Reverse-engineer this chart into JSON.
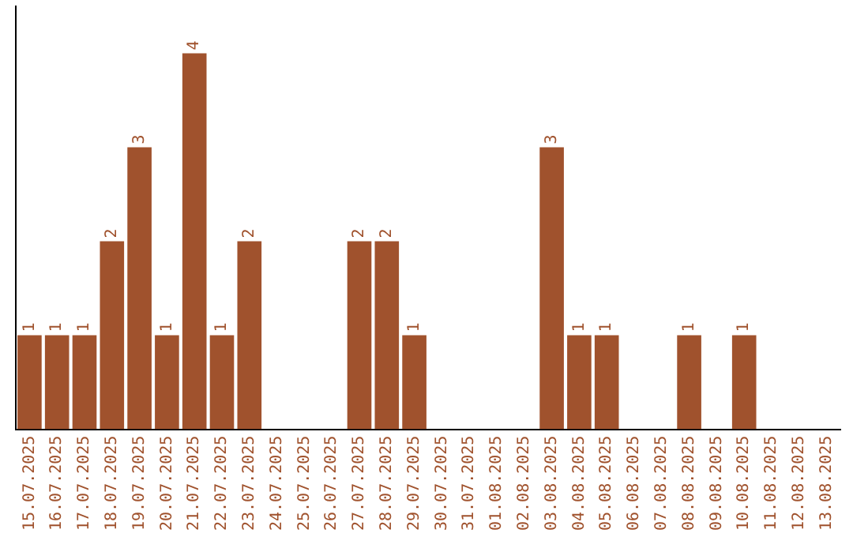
{
  "chart_data": {
    "type": "bar",
    "categories": [
      "15.07.2025",
      "16.07.2025",
      "17.07.2025",
      "18.07.2025",
      "19.07.2025",
      "20.07.2025",
      "21.07.2025",
      "22.07.2025",
      "23.07.2025",
      "24.07.2025",
      "25.07.2025",
      "26.07.2025",
      "27.07.2025",
      "28.07.2025",
      "29.07.2025",
      "30.07.2025",
      "31.07.2025",
      "01.08.2025",
      "02.08.2025",
      "03.08.2025",
      "04.08.2025",
      "05.08.2025",
      "06.08.2025",
      "07.08.2025",
      "08.08.2025",
      "09.08.2025",
      "10.08.2025",
      "11.08.2025",
      "12.08.2025",
      "13.08.2025"
    ],
    "values": [
      1,
      1,
      1,
      2,
      3,
      1,
      4,
      1,
      2,
      0,
      0,
      0,
      2,
      2,
      1,
      0,
      0,
      0,
      0,
      3,
      1,
      1,
      0,
      0,
      1,
      0,
      1,
      0,
      0,
      0
    ],
    "value_labels": [
      "1",
      "1",
      "1",
      "2",
      "3",
      "1",
      "4",
      "1",
      "2",
      null,
      null,
      null,
      "2",
      "2",
      "1",
      null,
      null,
      null,
      null,
      "3",
      "1",
      "1",
      null,
      null,
      "1",
      null,
      "1",
      null,
      null,
      null
    ],
    "color": "#a0522d",
    "grid": false,
    "legend": false,
    "tick_labels": "x"
  }
}
